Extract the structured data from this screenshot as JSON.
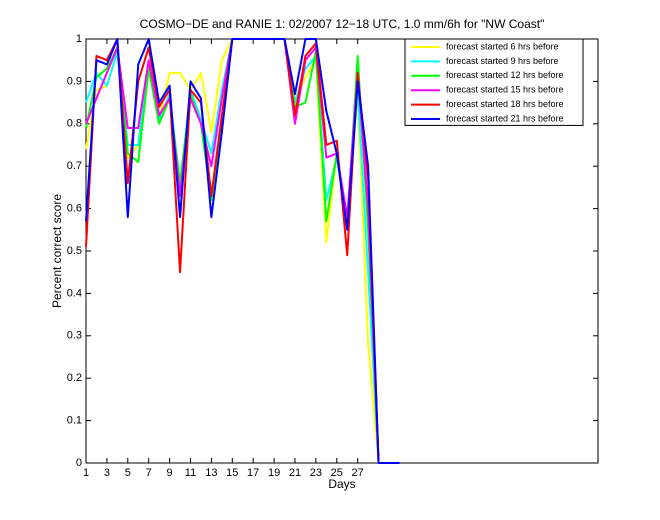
{
  "chart_data": {
    "type": "line",
    "title": "COSMO−DE and RANIE 1: 02/2007 12−18 UTC, 1.0 mm/6h for \"NW Coast\"",
    "x_label": "Days",
    "y_label": "Percent correct score",
    "x": [
      1,
      2,
      3,
      4,
      5,
      6,
      7,
      8,
      9,
      10,
      11,
      12,
      13,
      14,
      15,
      16,
      17,
      18,
      19,
      20,
      21,
      22,
      23,
      24,
      25,
      26,
      27,
      28,
      29,
      30,
      31
    ],
    "xlim": [
      1,
      50
    ],
    "xticks": [
      1,
      3,
      5,
      7,
      9,
      11,
      13,
      15,
      17,
      19,
      21,
      23,
      25,
      27
    ],
    "ylim": [
      0,
      1
    ],
    "yticks": [
      0,
      0.1,
      0.2,
      0.3,
      0.4,
      0.5,
      0.6,
      0.7,
      0.8,
      0.9,
      1
    ],
    "legend_position": "upper right",
    "series": [
      {
        "name": "forecast started 6 hrs before",
        "color": "#ffff00",
        "values": [
          0.74,
          0.88,
          0.89,
          0.97,
          0.72,
          0.75,
          0.93,
          0.81,
          0.92,
          0.92,
          0.88,
          0.92,
          0.78,
          0.95,
          1,
          1,
          1,
          1,
          1,
          1,
          0.85,
          0.91,
          0.95,
          0.52,
          0.73,
          0.57,
          0.87,
          0.28,
          0,
          0,
          0
        ]
      },
      {
        "name": "forecast started 9 hrs before",
        "color": "#00ffff",
        "values": [
          0.85,
          0.92,
          0.89,
          0.97,
          0.75,
          0.75,
          0.94,
          0.81,
          0.87,
          0.65,
          0.88,
          0.81,
          0.73,
          0.88,
          1,
          1,
          1,
          1,
          1,
          1,
          0.85,
          0.93,
          0.96,
          0.62,
          0.72,
          0.57,
          0.88,
          0.45,
          0,
          0,
          0
        ]
      },
      {
        "name": "forecast started 12 hrs before",
        "color": "#00ff00",
        "values": [
          0.79,
          0.91,
          0.93,
          0.98,
          0.73,
          0.71,
          0.93,
          0.8,
          0.86,
          0.66,
          0.87,
          0.8,
          0.62,
          0.8,
          1,
          1,
          1,
          1,
          1,
          1,
          0.84,
          0.85,
          0.97,
          0.57,
          0.73,
          0.56,
          0.96,
          0.55,
          0,
          0,
          0
        ]
      },
      {
        "name": "forecast started 15 hrs before",
        "color": "#ff00ff",
        "values": [
          0.8,
          0.86,
          0.92,
          0.98,
          0.79,
          0.79,
          0.95,
          0.82,
          0.86,
          0.63,
          0.86,
          0.8,
          0.7,
          0.86,
          1,
          1,
          1,
          1,
          1,
          1,
          0.8,
          0.95,
          0.98,
          0.72,
          0.73,
          0.58,
          0.92,
          0.6,
          0,
          0,
          0
        ]
      },
      {
        "name": "forecast started 18 hrs before",
        "color": "#ff0000",
        "values": [
          0.51,
          0.96,
          0.95,
          1,
          0.66,
          0.9,
          0.98,
          0.84,
          0.88,
          0.45,
          0.88,
          0.85,
          0.63,
          0.82,
          1,
          1,
          1,
          1,
          1,
          1,
          0.82,
          0.96,
          0.99,
          0.75,
          0.76,
          0.49,
          0.92,
          0.67,
          0,
          0,
          0
        ]
      },
      {
        "name": "forecast started 21 hrs before",
        "color": "#0000ff",
        "values": [
          0.57,
          0.95,
          0.94,
          1,
          0.58,
          0.94,
          1,
          0.85,
          0.89,
          0.58,
          0.9,
          0.86,
          0.58,
          0.78,
          1,
          1,
          1,
          1,
          1,
          1,
          0.87,
          1,
          1,
          0.83,
          0.73,
          0.55,
          0.9,
          0.7,
          0,
          0,
          0
        ]
      }
    ]
  }
}
